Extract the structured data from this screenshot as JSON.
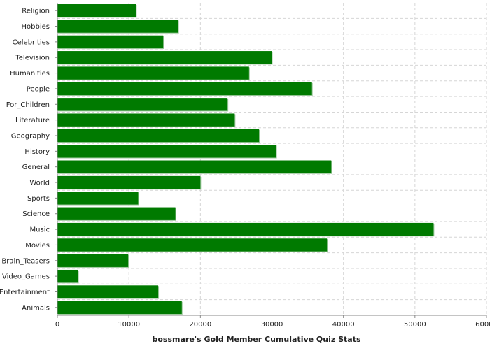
{
  "chart_data": {
    "type": "bar",
    "orientation": "horizontal",
    "xlabel": "bossmare's Gold Member Cumulative Quiz Stats",
    "xlim": [
      0,
      60000
    ],
    "xticks": [
      0,
      10000,
      20000,
      30000,
      40000,
      50000,
      60000
    ],
    "grid": true,
    "bar_color": "#007a00",
    "categories": [
      "Religion",
      "Hobbies",
      "Celebrities",
      "Television",
      "Humanities",
      "People",
      "For_Children",
      "Literature",
      "Geography",
      "History",
      "General",
      "World",
      "Sports",
      "Science",
      "Music",
      "Movies",
      "Brain_Teasers",
      "Video_Games",
      "Entertainment",
      "Animals"
    ],
    "values": [
      11000,
      16900,
      14800,
      30000,
      26800,
      35600,
      23800,
      24800,
      28200,
      30600,
      38300,
      20000,
      11300,
      16500,
      52600,
      37700,
      9900,
      2900,
      14100,
      17400
    ]
  }
}
